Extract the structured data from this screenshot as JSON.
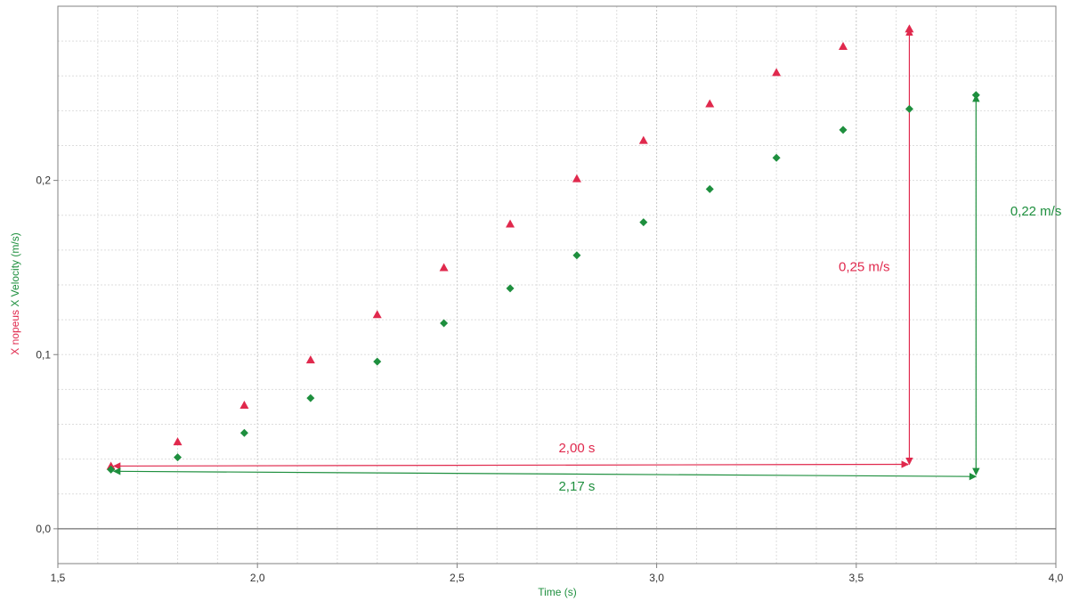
{
  "chart_data": {
    "type": "scatter",
    "xlabel": "Time (s)",
    "ylabel_parts": [
      {
        "text": "X nopeus",
        "color": "#e0294d"
      },
      {
        "text": "X Velocity (m/s)",
        "color": "#1e8f3e"
      }
    ],
    "xlim": [
      1.5,
      4.0
    ],
    "ylim": [
      -0.02,
      0.3
    ],
    "x_ticks": [
      1.5,
      2.0,
      2.5,
      3.0,
      3.5,
      4.0
    ],
    "x_tick_labels": [
      "1,5",
      "2,0",
      "2,5",
      "3,0",
      "3,5",
      "4,0"
    ],
    "y_ticks": [
      0.0,
      0.1,
      0.2
    ],
    "y_tick_labels": [
      "0,0",
      "0,1",
      "0,2"
    ],
    "grid": true,
    "series": [
      {
        "name": "X nopeus",
        "marker": "triangle",
        "color": "#e0294d",
        "x": [
          1.633,
          1.8,
          1.967,
          2.133,
          2.3,
          2.467,
          2.633,
          2.8,
          2.967,
          3.133,
          3.3,
          3.467,
          3.633
        ],
        "y": [
          0.036,
          0.05,
          0.071,
          0.097,
          0.123,
          0.15,
          0.175,
          0.201,
          0.223,
          0.244,
          0.262,
          0.277,
          0.287
        ]
      },
      {
        "name": "X Velocity",
        "marker": "diamond",
        "color": "#1e8f3e",
        "x": [
          1.633,
          1.8,
          1.967,
          2.133,
          2.3,
          2.467,
          2.633,
          2.8,
          2.967,
          3.133,
          3.3,
          3.467,
          3.633,
          3.8
        ],
        "y": [
          0.034,
          0.041,
          0.055,
          0.075,
          0.096,
          0.118,
          0.138,
          0.157,
          0.176,
          0.195,
          0.213,
          0.229,
          0.241,
          0.249
        ]
      }
    ],
    "annotations": [
      {
        "kind": "h-arrow",
        "color": "#e0294d",
        "x1": 1.64,
        "x2": 3.63,
        "y1": 0.036,
        "y2": 0.037,
        "label": "2,00 s",
        "label_x": 2.8,
        "label_y": 0.044
      },
      {
        "kind": "v-arrow",
        "color": "#e0294d",
        "x": 3.633,
        "y1": 0.037,
        "y2": 0.287,
        "label": "0,25 m/s",
        "label_x": 3.52,
        "label_y": 0.148
      },
      {
        "kind": "h-arrow",
        "color": "#1e8f3e",
        "x1": 1.64,
        "x2": 3.8,
        "y1": 0.033,
        "y2": 0.03,
        "label": "2,17 s",
        "label_x": 2.8,
        "label_y": 0.022
      },
      {
        "kind": "v-arrow",
        "color": "#1e8f3e",
        "x": 3.8,
        "y1": 0.031,
        "y2": 0.249,
        "label": "0,22 m/s",
        "label_x": 3.95,
        "label_y": 0.18
      }
    ]
  }
}
